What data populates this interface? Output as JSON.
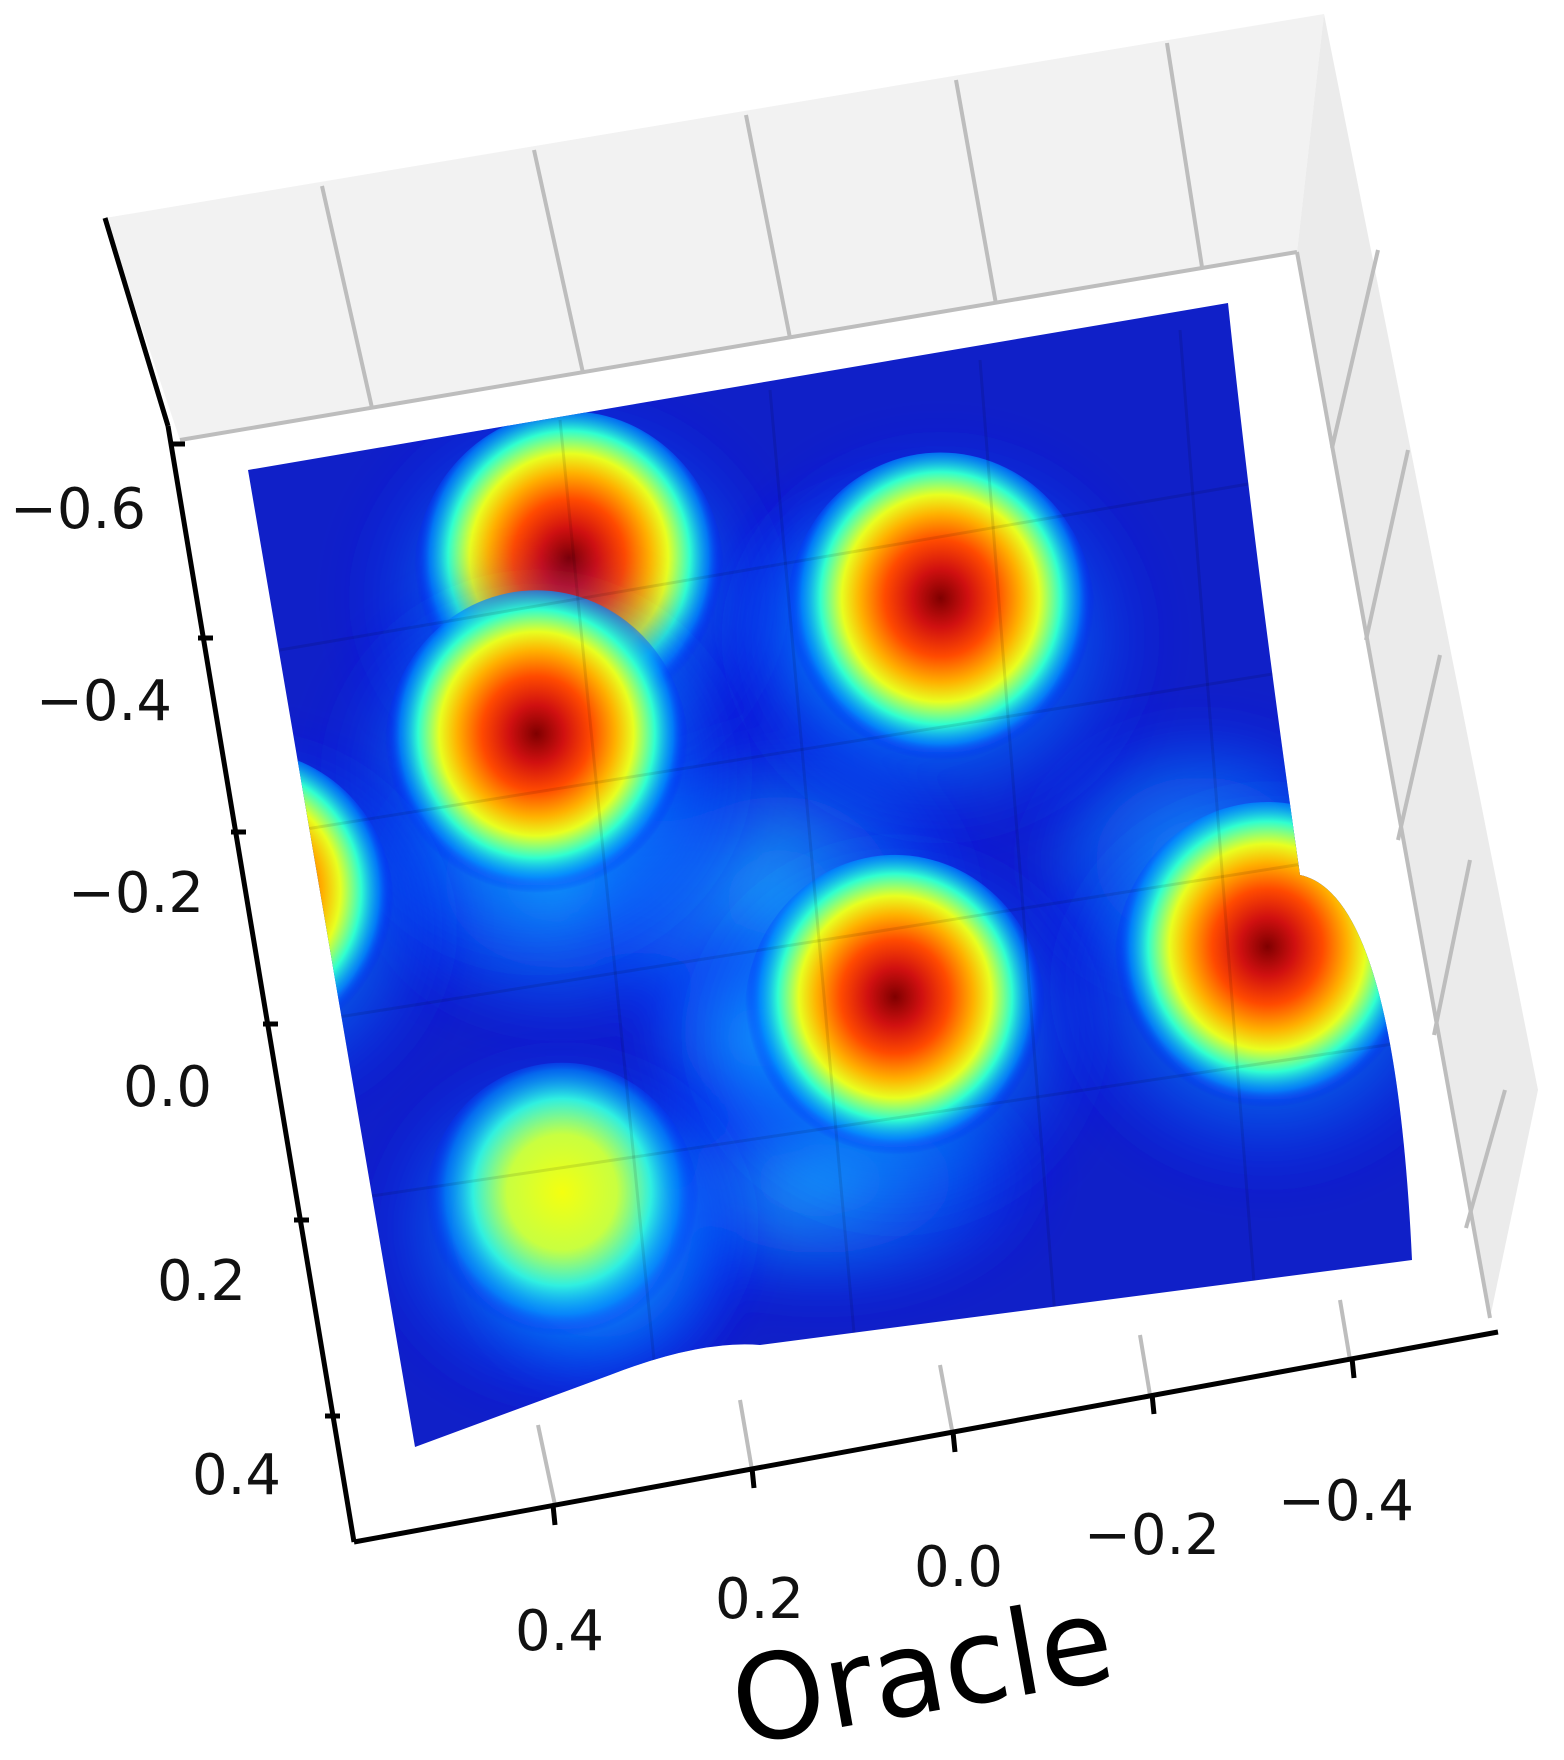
{
  "chart_data": {
    "type": "surface-3d",
    "title": "",
    "xlabel": "Oracle",
    "ylabel": "",
    "colormap": "jet",
    "colormap_stops": [
      "#00007f",
      "#0000ff",
      "#00ffff",
      "#ffff00",
      "#ff0000",
      "#7f0000"
    ],
    "x_ticks": [
      "0.4",
      "0.2",
      "0.0",
      "−0.2",
      "−0.4"
    ],
    "y_ticks": [
      "−0.6",
      "−0.4",
      "−0.2",
      "0.0",
      "0.2",
      "0.4"
    ],
    "x_tick_values": [
      0.4,
      0.2,
      0.0,
      -0.2,
      -0.4
    ],
    "y_tick_values": [
      -0.6,
      -0.4,
      -0.2,
      0.0,
      0.2,
      0.4
    ],
    "xlim": [
      0.5,
      -0.5
    ],
    "ylim": [
      -0.72,
      0.5
    ],
    "grid": true,
    "peaks": [
      {
        "x": 0.18,
        "y": -0.55,
        "height": 1.0
      },
      {
        "x": 0.25,
        "y": -0.38,
        "height": 0.92
      },
      {
        "x": -0.19,
        "y": -0.45,
        "height": 0.98
      },
      {
        "x": 0.58,
        "y": -0.27,
        "height": 0.85
      },
      {
        "x": -0.06,
        "y": -0.06,
        "height": 0.88
      },
      {
        "x": -0.45,
        "y": -0.05,
        "height": 0.95
      },
      {
        "x": 0.32,
        "y": 0.08,
        "height": 0.55
      }
    ]
  }
}
